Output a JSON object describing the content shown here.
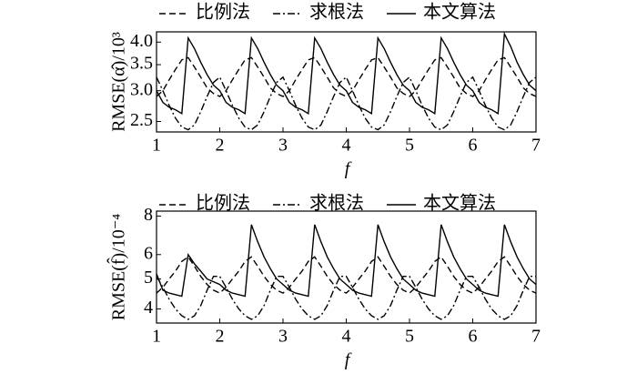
{
  "chart_data": [
    {
      "type": "line",
      "x_label": "f",
      "y_label": "RMSE(α̂)/10³",
      "log_y": true,
      "xlim": [
        1,
        7
      ],
      "xticks": [
        1,
        2,
        3,
        4,
        5,
        6,
        7
      ],
      "ylim": [
        2.35,
        4.25
      ],
      "yticks": [
        {
          "value": 4.0,
          "label": "4.0"
        },
        3.5,
        {
          "value": 3.0,
          "label": "3.0"
        },
        2.5
      ],
      "x": [
        1,
        1.1,
        1.2,
        1.3,
        1.4,
        1.5,
        1.6,
        1.7,
        1.8,
        1.9,
        2,
        2.1,
        2.2,
        2.3,
        2.4,
        2.5,
        2.6,
        2.7,
        2.8,
        2.9,
        3,
        3.1,
        3.2,
        3.3,
        3.4,
        3.5,
        3.6,
        3.7,
        3.8,
        3.9,
        4,
        4.1,
        4.2,
        4.3,
        4.4,
        4.5,
        4.6,
        4.7,
        4.8,
        4.9,
        5,
        5.1,
        5.2,
        5.3,
        5.4,
        5.5,
        5.6,
        5.7,
        5.8,
        5.9,
        6,
        6.1,
        6.2,
        6.3,
        6.4,
        6.5,
        6.6,
        6.7,
        6.8,
        6.9,
        7
      ],
      "series": [
        {
          "name": "比例法",
          "color": "#000000",
          "style": "dashed",
          "values": [
            2.9,
            3.0,
            3.2,
            3.4,
            3.6,
            3.65,
            3.45,
            3.25,
            3.05,
            2.95,
            2.9,
            3.0,
            3.2,
            3.4,
            3.6,
            3.65,
            3.45,
            3.25,
            3.05,
            2.95,
            2.9,
            3.0,
            3.2,
            3.4,
            3.6,
            3.65,
            3.45,
            3.25,
            3.05,
            2.95,
            2.9,
            3.0,
            3.2,
            3.4,
            3.6,
            3.65,
            3.45,
            3.25,
            3.05,
            2.95,
            2.9,
            3.0,
            3.2,
            3.4,
            3.6,
            3.65,
            3.45,
            3.25,
            3.05,
            2.95,
            2.9,
            3.0,
            3.2,
            3.4,
            3.6,
            3.65,
            3.45,
            3.25,
            3.05,
            2.95,
            2.9
          ]
        },
        {
          "name": "求根法",
          "color": "#000000",
          "style": "dashdot",
          "values": [
            3.25,
            3.0,
            2.75,
            2.55,
            2.42,
            2.38,
            2.45,
            2.65,
            2.9,
            3.15,
            3.25,
            3.0,
            2.75,
            2.55,
            2.42,
            2.38,
            2.45,
            2.65,
            2.9,
            3.15,
            3.25,
            3.0,
            2.75,
            2.55,
            2.42,
            2.38,
            2.45,
            2.65,
            2.9,
            3.15,
            3.25,
            3.0,
            2.75,
            2.55,
            2.42,
            2.38,
            2.45,
            2.65,
            2.9,
            3.15,
            3.25,
            3.0,
            2.75,
            2.55,
            2.42,
            2.38,
            2.45,
            2.65,
            2.9,
            3.15,
            3.25,
            3.0,
            2.75,
            2.55,
            2.42,
            2.38,
            2.45,
            2.65,
            2.9,
            3.15,
            3.25
          ]
        },
        {
          "name": "本文算法",
          "color": "#000000",
          "style": "solid",
          "values": [
            3.0,
            2.8,
            2.72,
            2.68,
            2.62,
            4.1,
            3.85,
            3.55,
            3.3,
            3.1,
            3.0,
            2.8,
            2.72,
            2.68,
            2.62,
            4.1,
            3.85,
            3.55,
            3.3,
            3.1,
            3.0,
            2.8,
            2.72,
            2.68,
            2.62,
            4.1,
            3.85,
            3.55,
            3.3,
            3.1,
            3.0,
            2.8,
            2.72,
            2.68,
            2.62,
            4.1,
            3.85,
            3.55,
            3.3,
            3.1,
            3.0,
            2.8,
            2.72,
            2.68,
            2.62,
            4.1,
            3.85,
            3.55,
            3.3,
            3.1,
            3.0,
            2.8,
            2.72,
            2.68,
            2.62,
            4.2,
            3.9,
            3.55,
            3.3,
            3.1,
            3.0
          ]
        }
      ]
    },
    {
      "type": "line",
      "x_label": "f",
      "y_label": "RMSE(f̂)/10⁻⁴",
      "log_y": true,
      "xlim": [
        1,
        7
      ],
      "xticks": [
        1,
        2,
        3,
        4,
        5,
        6,
        7
      ],
      "ylim": [
        3.6,
        8.3
      ],
      "yticks": [
        8,
        6,
        5,
        4
      ],
      "x": [
        1,
        1.1,
        1.2,
        1.3,
        1.4,
        1.5,
        1.6,
        1.7,
        1.8,
        1.9,
        2,
        2.1,
        2.2,
        2.3,
        2.4,
        2.5,
        2.6,
        2.7,
        2.8,
        2.9,
        3,
        3.1,
        3.2,
        3.3,
        3.4,
        3.5,
        3.6,
        3.7,
        3.8,
        3.9,
        4,
        4.1,
        4.2,
        4.3,
        4.4,
        4.5,
        4.6,
        4.7,
        4.8,
        4.9,
        5,
        5.1,
        5.2,
        5.3,
        5.4,
        5.5,
        5.6,
        5.7,
        5.8,
        5.9,
        6,
        6.1,
        6.2,
        6.3,
        6.4,
        6.5,
        6.6,
        6.7,
        6.8,
        6.9,
        7
      ],
      "series": [
        {
          "name": "比例法",
          "color": "#000000",
          "style": "dashed",
          "values": [
            4.5,
            4.7,
            5.0,
            5.3,
            5.7,
            5.9,
            5.5,
            5.1,
            4.8,
            4.6,
            4.5,
            4.7,
            5.0,
            5.3,
            5.7,
            5.9,
            5.5,
            5.1,
            4.8,
            4.6,
            4.5,
            4.7,
            5.0,
            5.3,
            5.7,
            5.9,
            5.5,
            5.1,
            4.8,
            4.6,
            4.5,
            4.7,
            5.0,
            5.3,
            5.7,
            5.9,
            5.5,
            5.1,
            4.8,
            4.6,
            4.5,
            4.7,
            5.0,
            5.3,
            5.7,
            5.9,
            5.5,
            5.1,
            4.8,
            4.6,
            4.5,
            4.7,
            5.0,
            5.3,
            5.7,
            5.9,
            5.5,
            5.1,
            4.8,
            4.6,
            4.5
          ]
        },
        {
          "name": "求根法",
          "color": "#000000",
          "style": "dashdot",
          "values": [
            5.1,
            4.7,
            4.3,
            4.0,
            3.8,
            3.7,
            3.8,
            4.1,
            4.6,
            5.1,
            5.1,
            4.7,
            4.3,
            4.0,
            3.8,
            3.7,
            3.8,
            4.1,
            4.6,
            5.1,
            5.1,
            4.7,
            4.3,
            4.0,
            3.8,
            3.7,
            3.8,
            4.1,
            4.6,
            5.1,
            5.1,
            4.7,
            4.3,
            4.0,
            3.8,
            3.7,
            3.8,
            4.1,
            4.6,
            5.1,
            5.1,
            4.7,
            4.3,
            4.0,
            3.8,
            3.7,
            3.8,
            4.1,
            4.6,
            5.1,
            5.1,
            4.7,
            4.3,
            4.0,
            3.8,
            3.7,
            3.8,
            4.1,
            4.6,
            5.1,
            5.1
          ]
        },
        {
          "name": "本文算法",
          "color": "#000000",
          "style": "solid",
          "values": [
            5.2,
            4.6,
            4.5,
            4.45,
            4.4,
            6.0,
            5.6,
            5.3,
            5.0,
            4.9,
            4.8,
            4.6,
            4.5,
            4.45,
            4.4,
            7.5,
            6.6,
            5.9,
            5.4,
            5.0,
            4.8,
            4.6,
            4.5,
            4.45,
            4.4,
            7.5,
            6.6,
            5.9,
            5.4,
            5.0,
            4.8,
            4.6,
            4.5,
            4.45,
            4.4,
            7.5,
            6.6,
            5.9,
            5.4,
            5.0,
            4.8,
            4.6,
            4.5,
            4.45,
            4.4,
            7.5,
            6.6,
            5.9,
            5.4,
            5.0,
            4.8,
            4.6,
            4.5,
            4.45,
            4.4,
            7.5,
            6.6,
            5.9,
            5.4,
            5.0,
            4.8
          ]
        }
      ]
    }
  ]
}
